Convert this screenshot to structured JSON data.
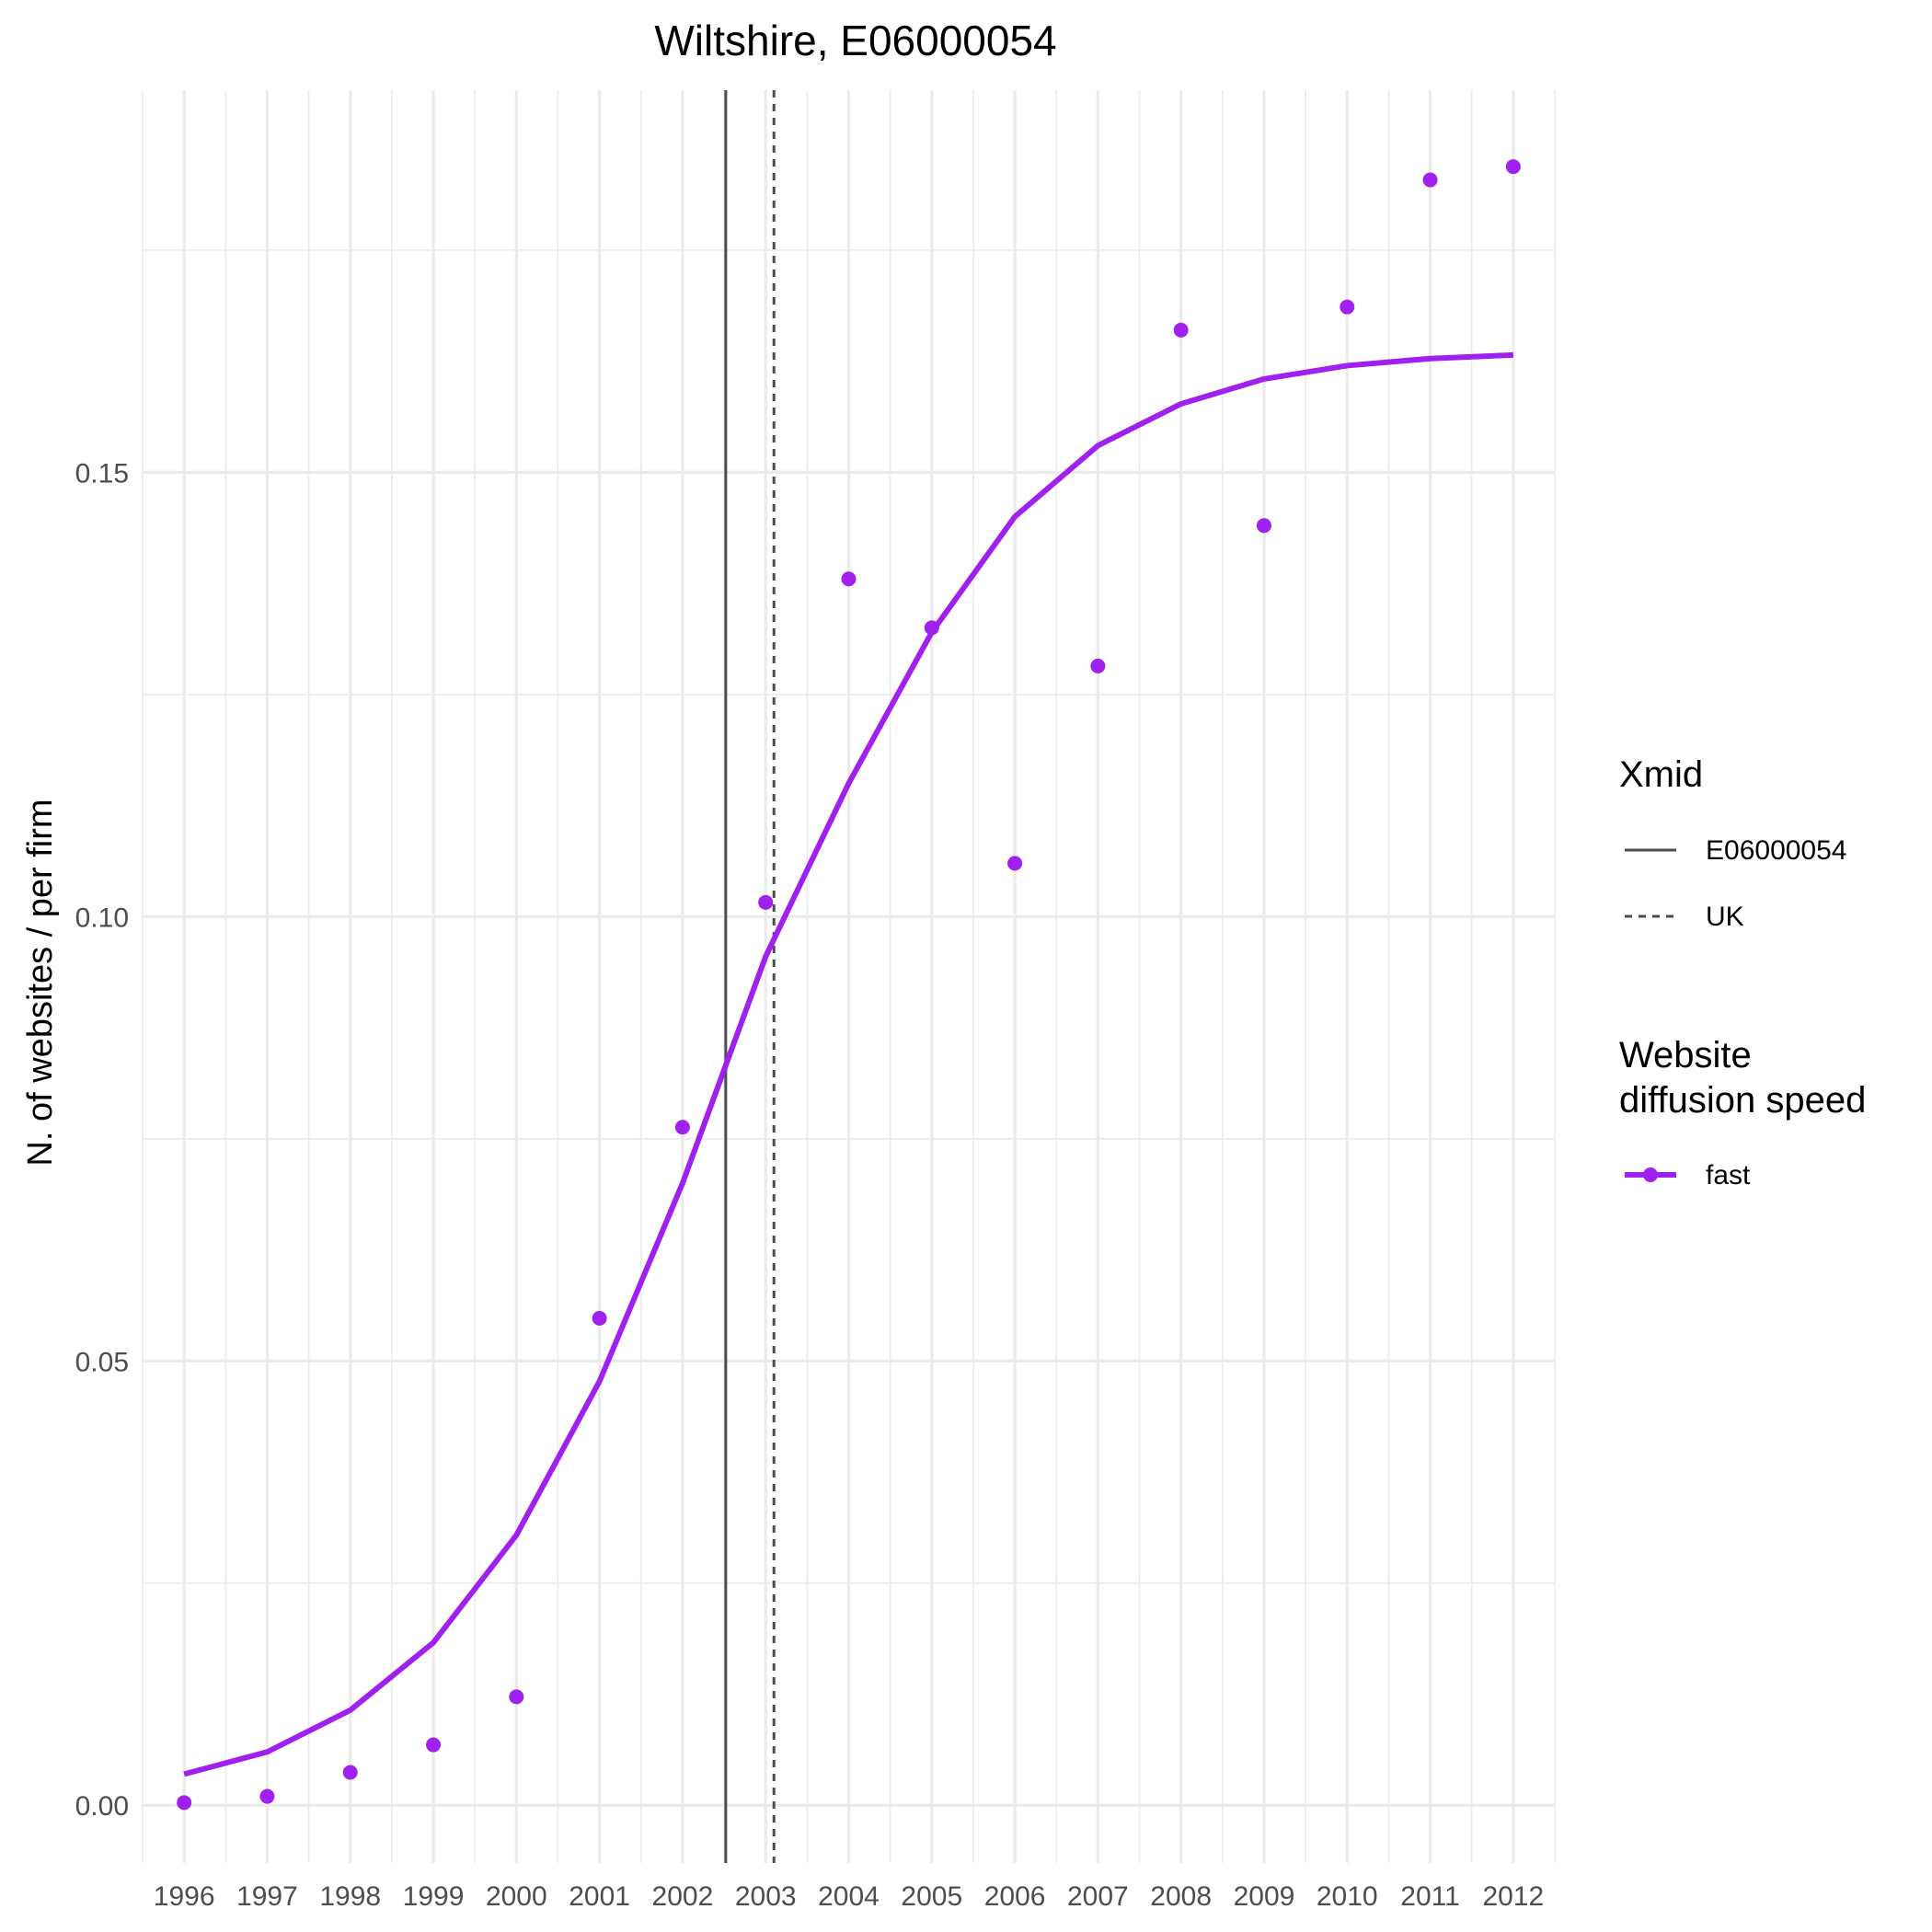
{
  "chart_data": {
    "type": "line",
    "title": "Wiltshire, E06000054",
    "xlabel": "",
    "ylabel": "N. of websites / per firm",
    "x": [
      1996,
      1997,
      1998,
      1999,
      2000,
      2001,
      2002,
      2003,
      2004,
      2005,
      2006,
      2007,
      2008,
      2009,
      2010,
      2011,
      2012
    ],
    "x_tick_labels": [
      "1996",
      "1997",
      "1998",
      "1999",
      "2000",
      "2001",
      "2002",
      "2003",
      "2004",
      "2005",
      "2006",
      "2007",
      "2008",
      "2009",
      "2010",
      "2011",
      "2012"
    ],
    "y_ticks": [
      0.0,
      0.05,
      0.1,
      0.15
    ],
    "y_tick_labels": [
      "0.00",
      "0.05",
      "0.10",
      "0.15"
    ],
    "xlim": [
      1995.5,
      2012.5
    ],
    "ylim": [
      -0.0065,
      0.193
    ],
    "grid": true,
    "legend_position": "right",
    "series": [
      {
        "name": "fast",
        "kind": "points",
        "color": "#a020f0",
        "values": [
          0.0003,
          0.001,
          0.0037,
          0.0068,
          0.0122,
          0.0548,
          0.0763,
          0.1016,
          0.138,
          0.1325,
          0.106,
          0.1282,
          0.166,
          0.144,
          0.1686,
          0.1829,
          0.1844
        ]
      },
      {
        "name": "fast",
        "kind": "fitted-line",
        "color": "#a020f0",
        "values": [
          0.0035,
          0.006,
          0.0107,
          0.0183,
          0.0304,
          0.0477,
          0.07,
          0.0955,
          0.115,
          0.132,
          0.145,
          0.153,
          0.1577,
          0.1605,
          0.162,
          0.1628,
          0.1632
        ]
      }
    ],
    "vlines": [
      {
        "name": "E06000054",
        "x": 2002.52,
        "style": "solid",
        "color": "#4d4d4d"
      },
      {
        "name": "UK",
        "x": 2003.1,
        "style": "dashed",
        "color": "#4d4d4d"
      }
    ],
    "legends": [
      {
        "title": "Xmid",
        "entries": [
          "E06000054",
          "UK"
        ]
      },
      {
        "title_lines": [
          "Website",
          "diffusion speed"
        ],
        "entries": [
          "fast"
        ]
      }
    ]
  }
}
